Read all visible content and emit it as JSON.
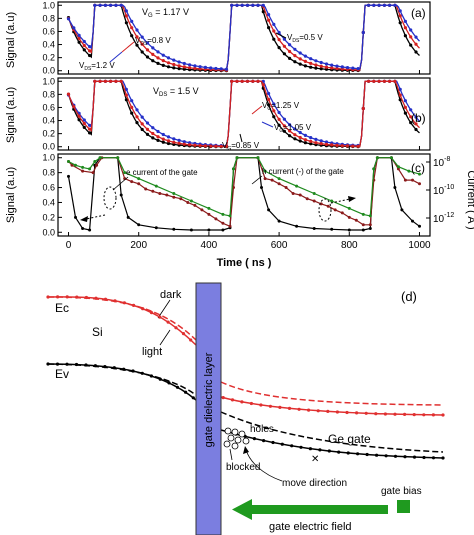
{
  "panel_labels": {
    "a": "(a)",
    "b": "(b)",
    "c": "(c)",
    "d": "(d)"
  },
  "axes": {
    "signal_label": "Signal (a.u)",
    "current_label": "Current ( A )",
    "time_label": "Time ( ns )",
    "signal_ticks": [
      "0.0",
      "0.2",
      "0.4",
      "0.6",
      "0.8",
      "1.0"
    ],
    "time_ticks": [
      "0",
      "200",
      "400",
      "600",
      "800",
      "1000"
    ],
    "current_ticks": [
      "10",
      "10",
      "10"
    ],
    "current_exps": [
      "-8",
      "-10",
      "-12"
    ]
  },
  "annotations_a": {
    "vg": "V",
    "vg_sub": "G",
    "vg_val": " = 1.17 V",
    "vds08": "V",
    "vds08_sub": "DS",
    "vds08_val": "=0.8 V",
    "vds12": "V",
    "vds12_sub": "DS",
    "vds12_val": "=1.2 V",
    "vds05": "V",
    "vds05_sub": "DS",
    "vds05_val": "=0.5 V"
  },
  "annotations_b": {
    "vds": "V",
    "vds_sub": "DS",
    "vds_val": " = 1.5 V",
    "vg125": "V",
    "vg125_sub": "G",
    "vg125_val": "=1.25 V",
    "vg105": "V",
    "vg105_sub": "G",
    "vg105_val": "=1.05 V",
    "vg085": "V",
    "vg085_sub": "G",
    "vg085_val": "=0.85 V"
  },
  "annotations_c": {
    "e_current": "e current of the gate",
    "h_current": "h current (-) of the gate"
  },
  "diagram_d": {
    "ec": "Ec",
    "ev": "Ev",
    "si": "Si",
    "dark": "dark",
    "light": "light",
    "gate_layer": "gate dielectric layer",
    "holes": "holes",
    "blocked": "blocked",
    "move_direction": "move direction",
    "ge_gate": "Ge gate",
    "gate_bias": "gate bias",
    "gate_field": "gate electric field"
  },
  "chart_data": [
    {
      "type": "line",
      "panel": "a",
      "xlabel": "",
      "ylabel": "Signal (a.u)",
      "xlim": [
        -30,
        1030
      ],
      "ylim": [
        -0.05,
        1.05
      ],
      "x_ticks": [
        0,
        200,
        400,
        600,
        800,
        1000
      ],
      "y_ticks": [
        0.0,
        0.2,
        0.4,
        0.6,
        0.8,
        1.0
      ],
      "pulses_on": [
        [
          75,
          140
        ],
        [
          465,
          540
        ],
        [
          845,
          920
        ]
      ],
      "series": [
        {
          "name": "V_DS=0.5 V",
          "color": "#000000",
          "tau": 48,
          "lag": 10
        },
        {
          "name": "V_DS=0.8 V",
          "color": "#d42020",
          "tau": 62,
          "lag": 14
        },
        {
          "name": "V_DS=1.2 V",
          "color": "#2430c8",
          "tau": 78,
          "lag": 18
        }
      ]
    },
    {
      "type": "line",
      "panel": "b",
      "xlabel": "",
      "ylabel": "Signal (a.u)",
      "xlim": [
        -30,
        1030
      ],
      "ylim": [
        -0.05,
        1.05
      ],
      "x_ticks": [
        0,
        200,
        400,
        600,
        800,
        1000
      ],
      "y_ticks": [
        0.0,
        0.2,
        0.4,
        0.6,
        0.8,
        1.0
      ],
      "pulses_on": [
        [
          75,
          140
        ],
        [
          465,
          540
        ],
        [
          845,
          920
        ]
      ],
      "series": [
        {
          "name": "V_G=0.85 V",
          "color": "#000000",
          "tau": 45,
          "lag": 10
        },
        {
          "name": "V_G=1.05 V",
          "color": "#2430c8",
          "tau": 68,
          "lag": 16
        },
        {
          "name": "V_G=1.25 V",
          "color": "#d42020",
          "tau": 55,
          "lag": 12
        }
      ]
    },
    {
      "type": "line",
      "panel": "c",
      "xlabel": "Time ( ns )",
      "ylabel": "Signal (a.u)",
      "y2label": "Current ( A )",
      "xlim": [
        -30,
        1030
      ],
      "ylim": [
        -0.05,
        1.05
      ],
      "x_ticks": [
        0,
        200,
        400,
        600,
        800,
        1000
      ],
      "y_ticks": [
        0.0,
        0.2,
        0.4,
        0.6,
        0.8,
        1.0
      ],
      "series": [
        {
          "name": "Signal",
          "color": "#000000",
          "x": [
            0,
            20,
            40,
            60,
            75,
            90,
            140,
            150,
            170,
            200,
            250,
            300,
            350,
            400,
            440,
            460,
            470,
            480,
            540,
            550,
            570,
            600,
            650,
            700,
            750,
            800,
            840,
            860,
            870,
            880,
            920,
            930,
            950,
            980,
            1000
          ],
          "y": [
            0.75,
            0.2,
            0.05,
            0.03,
            0.9,
            1.0,
            1.0,
            0.5,
            0.2,
            0.1,
            0.06,
            0.04,
            0.03,
            0.03,
            0.03,
            0.06,
            0.85,
            1.0,
            1.0,
            0.6,
            0.3,
            0.15,
            0.08,
            0.05,
            0.04,
            0.03,
            0.03,
            0.05,
            0.85,
            1.0,
            1.0,
            0.6,
            0.3,
            0.15,
            0.08
          ]
        },
        {
          "name": "e current of the gate",
          "color": "#8b1a1a",
          "x": [
            0,
            10,
            40,
            70,
            80,
            95,
            140,
            160,
            180,
            200,
            220,
            240,
            260,
            280,
            300,
            320,
            340,
            360,
            380,
            400,
            420,
            440,
            460,
            470,
            480,
            540,
            560,
            580,
            600,
            620,
            640,
            660,
            680,
            700,
            720,
            740,
            760,
            780,
            800,
            820,
            840,
            860,
            870,
            880,
            920,
            940,
            960,
            980,
            1000
          ],
          "y": [
            0.95,
            0.9,
            0.82,
            0.8,
            0.9,
            1.0,
            1.0,
            0.72,
            0.68,
            0.65,
            0.58,
            0.55,
            0.52,
            0.5,
            0.47,
            0.45,
            0.4,
            0.36,
            0.3,
            0.24,
            0.18,
            0.12,
            0.08,
            0.6,
            1.0,
            1.0,
            0.72,
            0.7,
            0.65,
            0.6,
            0.52,
            0.5,
            0.45,
            0.42,
            0.38,
            0.35,
            0.3,
            0.26,
            0.2,
            0.16,
            0.1,
            0.1,
            0.7,
            1.0,
            1.0,
            0.85,
            0.7,
            0.7,
            0.65
          ]
        },
        {
          "name": "h current (-) of the gate",
          "color": "#1e8a1e",
          "x": [
            0,
            20,
            40,
            60,
            75,
            90,
            140,
            160,
            200,
            250,
            300,
            350,
            400,
            440,
            460,
            470,
            480,
            540,
            560,
            600,
            650,
            700,
            750,
            800,
            840,
            860,
            870,
            880,
            920,
            940,
            970,
            1000
          ],
          "y": [
            0.95,
            0.9,
            0.87,
            0.85,
            0.95,
            1.0,
            1.0,
            0.8,
            0.72,
            0.62,
            0.52,
            0.42,
            0.32,
            0.24,
            0.22,
            0.85,
            1.0,
            1.0,
            0.82,
            0.72,
            0.62,
            0.52,
            0.42,
            0.32,
            0.24,
            0.22,
            0.85,
            1.0,
            1.0,
            0.88,
            0.82,
            0.78
          ]
        }
      ]
    }
  ]
}
